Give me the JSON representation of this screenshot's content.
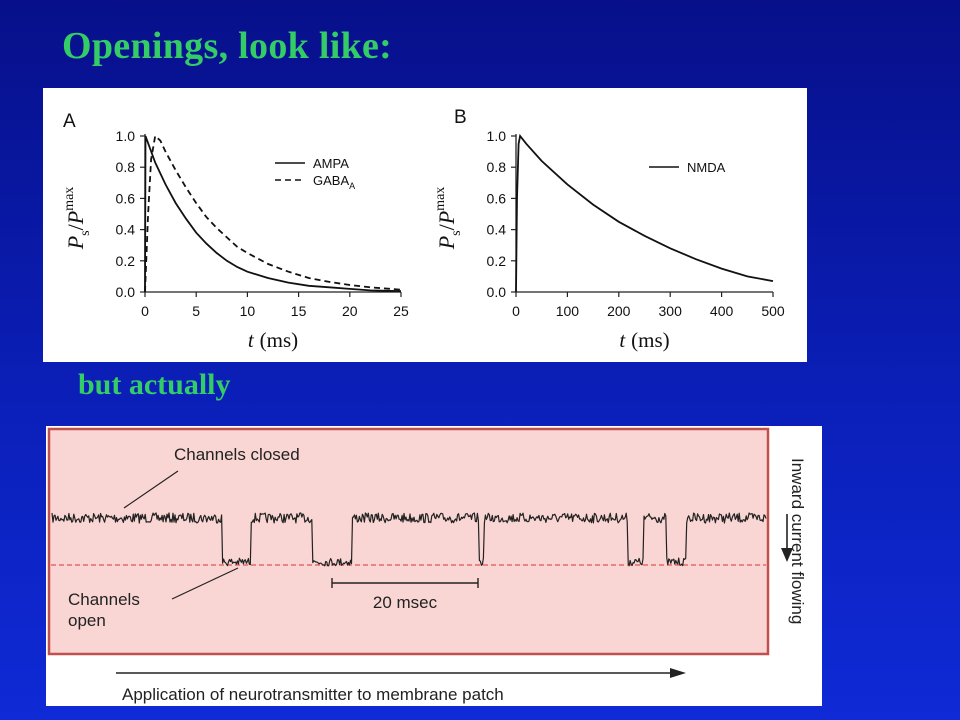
{
  "slide": {
    "title": "Openings, look like:",
    "subtitle": "but actually"
  },
  "colors": {
    "background": "#0b1fb8",
    "title_text": "#33cc66",
    "trace_background": "#f9d6d3",
    "trace_border": "#c0504d",
    "open_level_line": "#e05555"
  },
  "chart_data": [
    {
      "type": "line",
      "panel_label": "A",
      "xlabel": {
        "var": "t",
        "unit": "(ms)"
      },
      "ylabel": {
        "main": "P",
        "sub1": "s",
        "slash": "/",
        "main2": "P",
        "sub2": "max"
      },
      "xlim": [
        0,
        25
      ],
      "ylim": [
        0,
        1.0
      ],
      "xticks": [
        "0",
        "5",
        "10",
        "15",
        "20",
        "25"
      ],
      "yticks": [
        "0.0",
        "0.2",
        "0.4",
        "0.6",
        "0.8",
        "1.0"
      ],
      "legend_position": "top-right",
      "series": [
        {
          "name": "AMPA",
          "style": "solid",
          "points": [
            [
              0,
              0
            ],
            [
              0.05,
              1.0
            ],
            [
              1,
              0.83
            ],
            [
              2,
              0.69
            ],
            [
              3,
              0.57
            ],
            [
              4,
              0.47
            ],
            [
              5,
              0.38
            ],
            [
              6,
              0.31
            ],
            [
              7,
              0.25
            ],
            [
              8,
              0.2
            ],
            [
              9,
              0.16
            ],
            [
              10,
              0.13
            ],
            [
              12,
              0.09
            ],
            [
              14,
              0.06
            ],
            [
              16,
              0.04
            ],
            [
              18,
              0.03
            ],
            [
              20,
              0.02
            ],
            [
              22,
              0.01
            ],
            [
              25,
              0.005
            ]
          ]
        },
        {
          "name": "GABA",
          "name_sub": "A",
          "style": "dashed",
          "points": [
            [
              0,
              0
            ],
            [
              0.3,
              0.5
            ],
            [
              0.6,
              0.85
            ],
            [
              1,
              1.0
            ],
            [
              1.5,
              0.97
            ],
            [
              2,
              0.9
            ],
            [
              3,
              0.78
            ],
            [
              4,
              0.67
            ],
            [
              5,
              0.57
            ],
            [
              6,
              0.48
            ],
            [
              7,
              0.41
            ],
            [
              8,
              0.35
            ],
            [
              9,
              0.29
            ],
            [
              10,
              0.25
            ],
            [
              12,
              0.18
            ],
            [
              14,
              0.13
            ],
            [
              16,
              0.09
            ],
            [
              18,
              0.065
            ],
            [
              20,
              0.045
            ],
            [
              22,
              0.03
            ],
            [
              25,
              0.015
            ]
          ]
        }
      ]
    },
    {
      "type": "line",
      "panel_label": "B",
      "xlabel": {
        "var": "t",
        "unit": "(ms)"
      },
      "ylabel": {
        "main": "P",
        "sub1": "s",
        "slash": "/",
        "main2": "P",
        "sub2": "max"
      },
      "xlim": [
        0,
        500
      ],
      "ylim": [
        0,
        1.0
      ],
      "xticks": [
        "0",
        "100",
        "200",
        "300",
        "400",
        "500"
      ],
      "yticks": [
        "0.0",
        "0.2",
        "0.4",
        "0.6",
        "0.8",
        "1.0"
      ],
      "legend_position": "top-right",
      "series": [
        {
          "name": "NMDA",
          "style": "solid",
          "points": [
            [
              0,
              0
            ],
            [
              2,
              0.6
            ],
            [
              5,
              0.95
            ],
            [
              8,
              1.0
            ],
            [
              20,
              0.95
            ],
            [
              50,
              0.84
            ],
            [
              100,
              0.69
            ],
            [
              150,
              0.56
            ],
            [
              200,
              0.45
            ],
            [
              250,
              0.36
            ],
            [
              300,
              0.28
            ],
            [
              350,
              0.21
            ],
            [
              400,
              0.15
            ],
            [
              450,
              0.1
            ],
            [
              500,
              0.07
            ]
          ]
        }
      ]
    },
    {
      "type": "line",
      "description_labels": {
        "closed": "Channels closed",
        "open_line1": "Channels",
        "open_line2": "open",
        "scale_bar": "20 msec",
        "current_direction": "Inward current flowing",
        "arrow_caption": "Application of neurotransmitter to membrane patch"
      },
      "xlim": [
        0,
        100
      ],
      "levels": {
        "closed": 0,
        "open": 1
      },
      "openings": [
        [
          23.8,
          27.8
        ],
        [
          36.5,
          42.0
        ],
        [
          59.8,
          60.5
        ],
        [
          80.6,
          82.8
        ],
        [
          86.0,
          88.8
        ]
      ]
    }
  ]
}
